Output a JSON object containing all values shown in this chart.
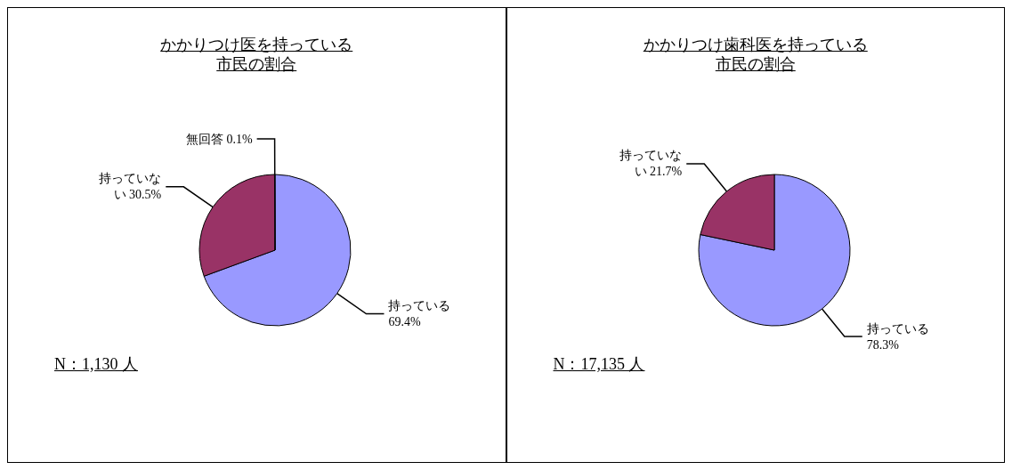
{
  "chart_data": [
    {
      "type": "pie",
      "title": "かかりつけ医を持っている",
      "subtitle": "市民の割合",
      "categories": [
        "持っている",
        "持っていない",
        "無回答"
      ],
      "values": [
        69.4,
        30.5,
        0.1
      ],
      "colors": [
        "#9999ff",
        "#993366",
        "#ffffff"
      ],
      "value_labels": [
        "69.4%",
        "30.5%",
        "0.1%"
      ],
      "annotations": [
        "N：1,130 人"
      ]
    },
    {
      "type": "pie",
      "title": "かかりつけ歯科医を持っている",
      "subtitle": "市民の割合",
      "categories": [
        "持っている",
        "持っていない"
      ],
      "values": [
        78.3,
        21.7
      ],
      "colors": [
        "#9999ff",
        "#993366"
      ],
      "value_labels": [
        "78.3%",
        "21.7%"
      ],
      "annotations": [
        "N：17,135 人"
      ]
    }
  ]
}
